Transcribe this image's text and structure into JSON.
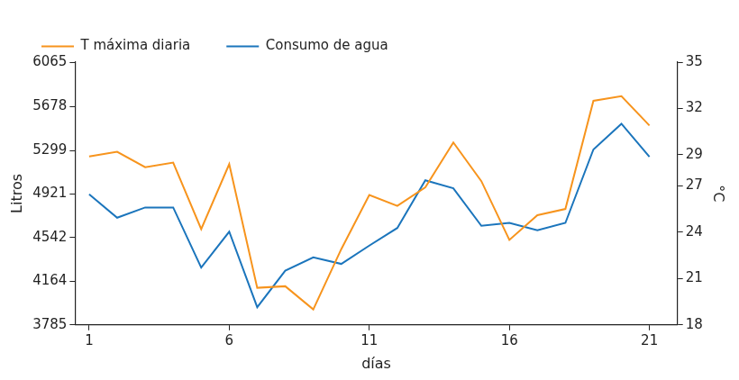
{
  "chart_data": {
    "type": "line",
    "x_label": "días",
    "y_label": "Litros",
    "y2_label": "°C",
    "x": [
      1,
      2,
      3,
      4,
      5,
      6,
      7,
      8,
      9,
      10,
      11,
      12,
      13,
      14,
      15,
      16,
      17,
      18,
      19,
      20,
      21
    ],
    "series": [
      {
        "name": "T máxima diaria",
        "color": "#f7941d",
        "axis": "y2",
        "values": [
          28.9,
          29.2,
          28.2,
          28.5,
          24.2,
          28.4,
          20.4,
          20.5,
          19.0,
          22.9,
          26.4,
          25.7,
          26.9,
          29.8,
          27.3,
          23.5,
          25.1,
          25.5,
          32.5,
          32.8,
          30.9
        ]
      },
      {
        "name": "Consumo de agua",
        "color": "#1b75bc",
        "values": [
          4919,
          4715,
          4804,
          4804,
          4282,
          4594,
          3938,
          4256,
          4371,
          4314,
          4473,
          4626,
          5040,
          4970,
          4645,
          4670,
          4607,
          4670,
          5307,
          5530,
          5244
        ]
      }
    ],
    "xlim": [
      0.5,
      22
    ],
    "xticks": [
      1,
      6,
      11,
      16,
      21
    ],
    "ylim": [
      3785,
      6065
    ],
    "yticks": [
      3785,
      4164,
      4542,
      4921,
      5299,
      5678,
      6065
    ],
    "y2lim": [
      18,
      35
    ],
    "y2ticks": [
      18,
      21,
      24,
      27,
      29,
      32,
      35
    ],
    "grid": false,
    "legend": "top"
  }
}
